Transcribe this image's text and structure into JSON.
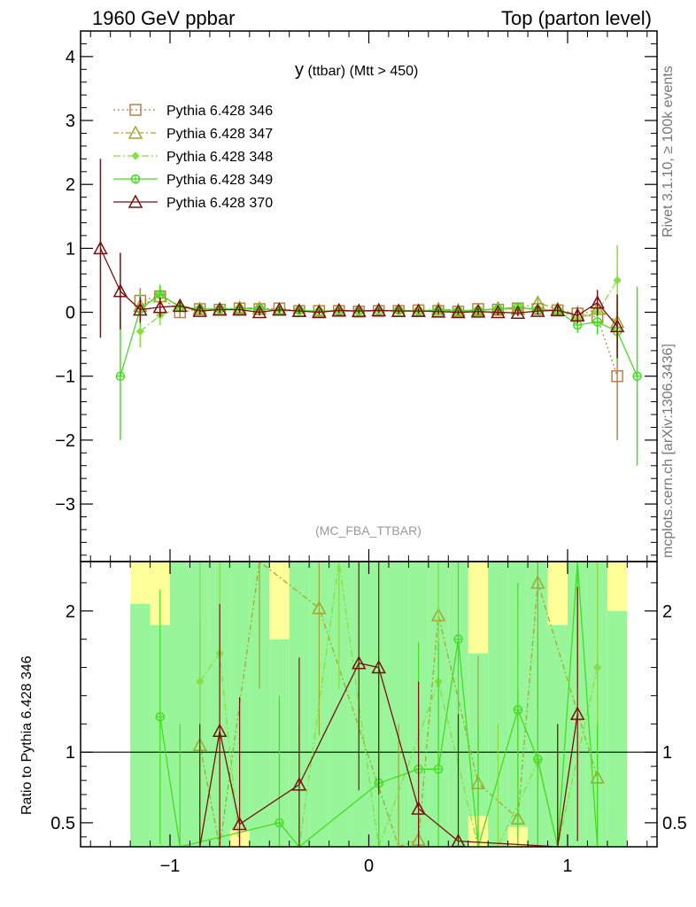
{
  "header": {
    "left": "1960 GeV ppbar",
    "right": "Top (parton level)"
  },
  "side": {
    "rivet": "Rivet 3.1.10, ≥ 100k events",
    "mcplots": "mcplots.cern.ch [arXiv:1306.3436]"
  },
  "chart_data": {
    "type": "line",
    "title": "y (ttbar) (Mtt > 450)",
    "title_main": "y",
    "title_rest": " (ttbar) (Mtt > 450)",
    "watermark": "(MC_FBA_TTBAR)",
    "xlabel": "",
    "ylabel": "",
    "xlim": [
      -1.45,
      1.45
    ],
    "ylim": [
      -3.9,
      4.4
    ],
    "x_ticks": [
      -1,
      0,
      1
    ],
    "x_tick_labels": [
      "−1",
      "0",
      "1"
    ],
    "y_ticks": [
      -3,
      -2,
      -1,
      0,
      1,
      2,
      3,
      4
    ],
    "y_tick_labels": [
      "−3",
      "−2",
      "−1",
      "0",
      "1",
      "2",
      "3",
      "4"
    ],
    "legend_position": "top-left",
    "x": [
      -1.35,
      -1.25,
      -1.15,
      -1.05,
      -0.95,
      -0.85,
      -0.75,
      -0.65,
      -0.55,
      -0.45,
      -0.35,
      -0.25,
      -0.15,
      -0.05,
      0.05,
      0.15,
      0.25,
      0.35,
      0.45,
      0.55,
      0.65,
      0.75,
      0.85,
      0.95,
      1.05,
      1.15,
      1.25,
      1.35
    ],
    "series": [
      {
        "name": "Pythia 6.428 346",
        "color": "#b8804a",
        "marker": "square",
        "dash": "2,3",
        "values": [
          null,
          null,
          0.18,
          0.25,
          0.0,
          0.05,
          0.04,
          0.06,
          0.05,
          0.06,
          0.02,
          0.02,
          0.02,
          0.01,
          0.02,
          0.02,
          0.03,
          0.02,
          0.01,
          0.05,
          0.04,
          0.06,
          0.05,
          0.03,
          -0.02,
          -0.08,
          -1.0,
          null
        ],
        "errors": [
          0,
          0,
          0.2,
          0.15,
          0.08,
          0.06,
          0.05,
          0.05,
          0.05,
          0.05,
          0.04,
          0.04,
          0.04,
          0.04,
          0.04,
          0.04,
          0.04,
          0.04,
          0.04,
          0.05,
          0.05,
          0.05,
          0.06,
          0.08,
          0.12,
          0.2,
          1.0,
          0
        ]
      },
      {
        "name": "Pythia 6.428 347",
        "color": "#a0a830",
        "marker": "triangle-open",
        "dash": "6,3,2,3",
        "values": [
          null,
          null,
          0.1,
          0.25,
          0.1,
          0.05,
          0.05,
          0.07,
          0.06,
          0.04,
          0.02,
          0.02,
          0.02,
          0.02,
          0.03,
          0.02,
          0.02,
          0.05,
          0.03,
          0.03,
          0.06,
          0.05,
          0.15,
          0.05,
          -0.05,
          0.05,
          -0.15,
          null
        ],
        "errors": [
          0,
          0,
          0.2,
          0.15,
          0.08,
          0.06,
          0.05,
          0.05,
          0.05,
          0.05,
          0.04,
          0.04,
          0.04,
          0.04,
          0.04,
          0.04,
          0.04,
          0.04,
          0.04,
          0.05,
          0.05,
          0.05,
          0.06,
          0.08,
          0.12,
          0.2,
          0.4,
          0
        ]
      },
      {
        "name": "Pythia 6.428 348",
        "color": "#88dd44",
        "marker": "diamond",
        "dash": "8,3,2,3",
        "values": [
          null,
          null,
          -0.3,
          -0.05,
          0.08,
          0.06,
          0.04,
          0.06,
          0.05,
          0.04,
          0.02,
          0.03,
          0.02,
          0.02,
          0.03,
          0.02,
          0.02,
          0.04,
          0.02,
          0.04,
          0.05,
          0.07,
          0.05,
          0.03,
          -0.1,
          0.0,
          0.5,
          null
        ],
        "errors": [
          0,
          0,
          0.25,
          0.15,
          0.08,
          0.06,
          0.05,
          0.05,
          0.05,
          0.05,
          0.04,
          0.04,
          0.04,
          0.04,
          0.04,
          0.04,
          0.04,
          0.04,
          0.04,
          0.05,
          0.05,
          0.05,
          0.06,
          0.08,
          0.12,
          0.2,
          0.55,
          0
        ]
      },
      {
        "name": "Pythia 6.428 349",
        "color": "#44dd22",
        "marker": "circle-cross",
        "dash": "",
        "values": [
          null,
          -1.0,
          0.05,
          0.28,
          0.08,
          0.05,
          0.05,
          0.05,
          0.06,
          0.02,
          0.03,
          0.01,
          0.02,
          0.02,
          0.02,
          0.03,
          0.02,
          0.03,
          0.02,
          0.03,
          0.05,
          0.08,
          0.04,
          0.03,
          -0.2,
          -0.15,
          -0.3,
          -1.0
        ],
        "errors": [
          0,
          1.0,
          0.25,
          0.15,
          0.08,
          0.06,
          0.05,
          0.05,
          0.05,
          0.05,
          0.04,
          0.04,
          0.04,
          0.04,
          0.04,
          0.04,
          0.04,
          0.04,
          0.04,
          0.05,
          0.05,
          0.05,
          0.06,
          0.08,
          0.12,
          0.2,
          0.5,
          1.4
        ]
      },
      {
        "name": "Pythia 6.428 370",
        "color": "#7a1010",
        "marker": "triangle-open",
        "dash": "",
        "values": [
          1.0,
          0.33,
          0.04,
          0.08,
          0.1,
          0.02,
          0.04,
          0.04,
          0.0,
          0.04,
          0.02,
          0.0,
          0.03,
          0.02,
          0.03,
          0.02,
          0.02,
          0.01,
          0.0,
          0.01,
          0.0,
          -0.01,
          0.02,
          0.03,
          -0.05,
          0.15,
          -0.22,
          null
        ],
        "errors": [
          1.4,
          0.6,
          0.2,
          0.15,
          0.08,
          0.06,
          0.05,
          0.05,
          0.05,
          0.05,
          0.04,
          0.04,
          0.04,
          0.04,
          0.04,
          0.04,
          0.04,
          0.04,
          0.04,
          0.05,
          0.05,
          0.05,
          0.06,
          0.08,
          0.12,
          0.2,
          0.5,
          0
        ]
      }
    ],
    "ratio": {
      "ylabel": "Ratio to Pythia 6.428 346",
      "ylim": [
        0.33,
        2.35
      ],
      "y_ticks": [
        0.5,
        1,
        2
      ],
      "y_tick_labels": [
        "0.5",
        "1",
        "2"
      ],
      "reference_line": 1.0,
      "band_green": [
        null,
        null,
        [
          0.3,
          2.05
        ],
        [
          0.3,
          1.9
        ],
        [
          0.3,
          2.35
        ],
        [
          0.3,
          2.35
        ],
        [
          0.3,
          2.35
        ],
        [
          0.45,
          2.35
        ],
        [
          0.3,
          2.35
        ],
        [
          0.33,
          1.8
        ],
        [
          0.3,
          2.35
        ],
        [
          0.3,
          2.35
        ],
        [
          0.3,
          2.35
        ],
        [
          0.3,
          2.35
        ],
        [
          0.3,
          2.35
        ],
        [
          0.3,
          2.35
        ],
        [
          0.3,
          2.35
        ],
        [
          0.3,
          2.35
        ],
        [
          0.3,
          2.35
        ],
        [
          0.55,
          1.7
        ],
        [
          0.3,
          2.35
        ],
        [
          0.47,
          2.35
        ],
        [
          0.3,
          2.35
        ],
        [
          0.3,
          1.9
        ],
        [
          0.3,
          2.35
        ],
        [
          0.3,
          2.35
        ],
        [
          0.3,
          2.0
        ],
        null
      ],
      "band_yellow": [
        null,
        null,
        [
          0.3,
          2.35
        ],
        [
          0.3,
          2.35
        ],
        [
          0.3,
          2.35
        ],
        [
          0.3,
          2.35
        ],
        [
          0.3,
          2.35
        ],
        [
          0.3,
          2.35
        ],
        [
          0.3,
          2.35
        ],
        [
          0.3,
          2.35
        ],
        [
          0.3,
          2.35
        ],
        [
          0.3,
          2.35
        ],
        [
          0.3,
          2.35
        ],
        [
          0.3,
          2.35
        ],
        [
          0.3,
          2.35
        ],
        [
          0.3,
          2.35
        ],
        [
          0.3,
          2.35
        ],
        [
          0.3,
          2.35
        ],
        [
          0.3,
          2.35
        ],
        [
          0.3,
          2.35
        ],
        [
          0.3,
          2.35
        ],
        [
          0.3,
          2.35
        ],
        [
          0.3,
          2.35
        ],
        [
          0.3,
          2.35
        ],
        [
          0.3,
          2.35
        ],
        [
          0.3,
          2.35
        ],
        [
          0.3,
          2.35
        ],
        null
      ],
      "series": [
        {
          "color": "#a0a830",
          "dash": "6,3,2,3",
          "marker": "triangle-open",
          "values": [
            null,
            null,
            null,
            null,
            null,
            1.05,
            0.3,
            null,
            2.35,
            null,
            null,
            2.02,
            null,
            null,
            null,
            0.3,
            0.38,
            1.97,
            null,
            0.78,
            null,
            0.53,
            2.2,
            null,
            null,
            0.82,
            null,
            null
          ]
        },
        {
          "color": "#88dd44",
          "dash": "8,3,2,3",
          "marker": "diamond",
          "values": [
            null,
            null,
            null,
            null,
            null,
            1.5,
            1.7,
            0.3,
            null,
            null,
            0.3,
            null,
            2.35,
            null,
            0.3,
            null,
            null,
            1.5,
            null,
            0.3,
            0.3,
            null,
            0.93,
            0.3,
            null,
            1.6,
            null,
            null
          ]
        },
        {
          "color": "#44dd22",
          "dash": "",
          "marker": "circle-cross",
          "values": [
            null,
            null,
            null,
            1.25,
            0.3,
            null,
            null,
            null,
            null,
            0.5,
            0.3,
            null,
            null,
            null,
            0.78,
            null,
            0.88,
            0.88,
            1.8,
            0.3,
            null,
            1.3,
            0.95,
            0.3,
            2.35,
            0.3,
            null,
            null
          ]
        },
        {
          "color": "#7a1010",
          "dash": "",
          "marker": "triangle-open",
          "values": [
            null,
            null,
            null,
            null,
            null,
            0.3,
            1.15,
            0.49,
            null,
            null,
            0.77,
            null,
            null,
            1.63,
            1.6,
            null,
            0.6,
            null,
            0.37,
            null,
            null,
            null,
            null,
            0.3,
            1.27,
            null,
            null,
            null
          ]
        }
      ]
    }
  }
}
